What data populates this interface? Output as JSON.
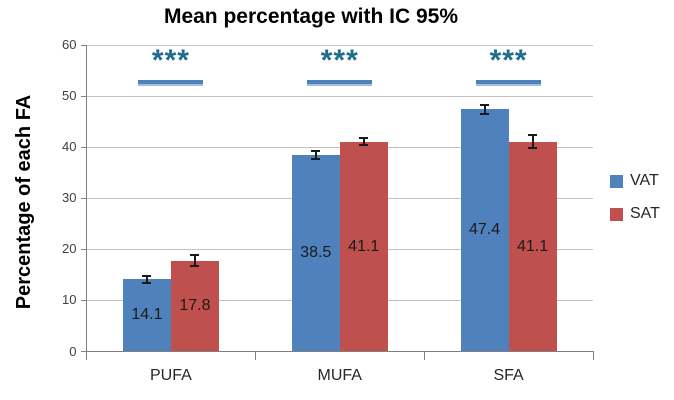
{
  "chart_data": {
    "type": "bar",
    "title": "Mean percentage with IC 95%",
    "ylabel": "Percentage of each FA",
    "categories": [
      "PUFA",
      "MUFA",
      "SFA"
    ],
    "series": [
      {
        "name": "VAT",
        "color": "#4F81BD",
        "values": [
          14.1,
          38.5,
          47.4
        ],
        "errors": [
          0.7,
          0.8,
          0.9
        ]
      },
      {
        "name": "SAT",
        "color": "#C0504D",
        "values": [
          17.8,
          41.1,
          41.1
        ],
        "errors": [
          1.0,
          0.7,
          1.3
        ]
      }
    ],
    "ylim": [
      0,
      60
    ],
    "yticks": [
      0,
      10,
      20,
      30,
      40,
      50,
      60
    ],
    "grid": true,
    "legend_position": "right",
    "significance": [
      {
        "category": "PUFA",
        "label": "***"
      },
      {
        "category": "MUFA",
        "label": "***"
      },
      {
        "category": "SFA",
        "label": "***"
      }
    ],
    "colors": {
      "sig_text": "#1F6D8C",
      "sig_bracket": "#4F81BD",
      "sig_bracket_shadow": "#A3BDDB",
      "gridline": "#C3C3C3",
      "axis": "#808080",
      "error_bar": "#1A1A1A"
    }
  }
}
